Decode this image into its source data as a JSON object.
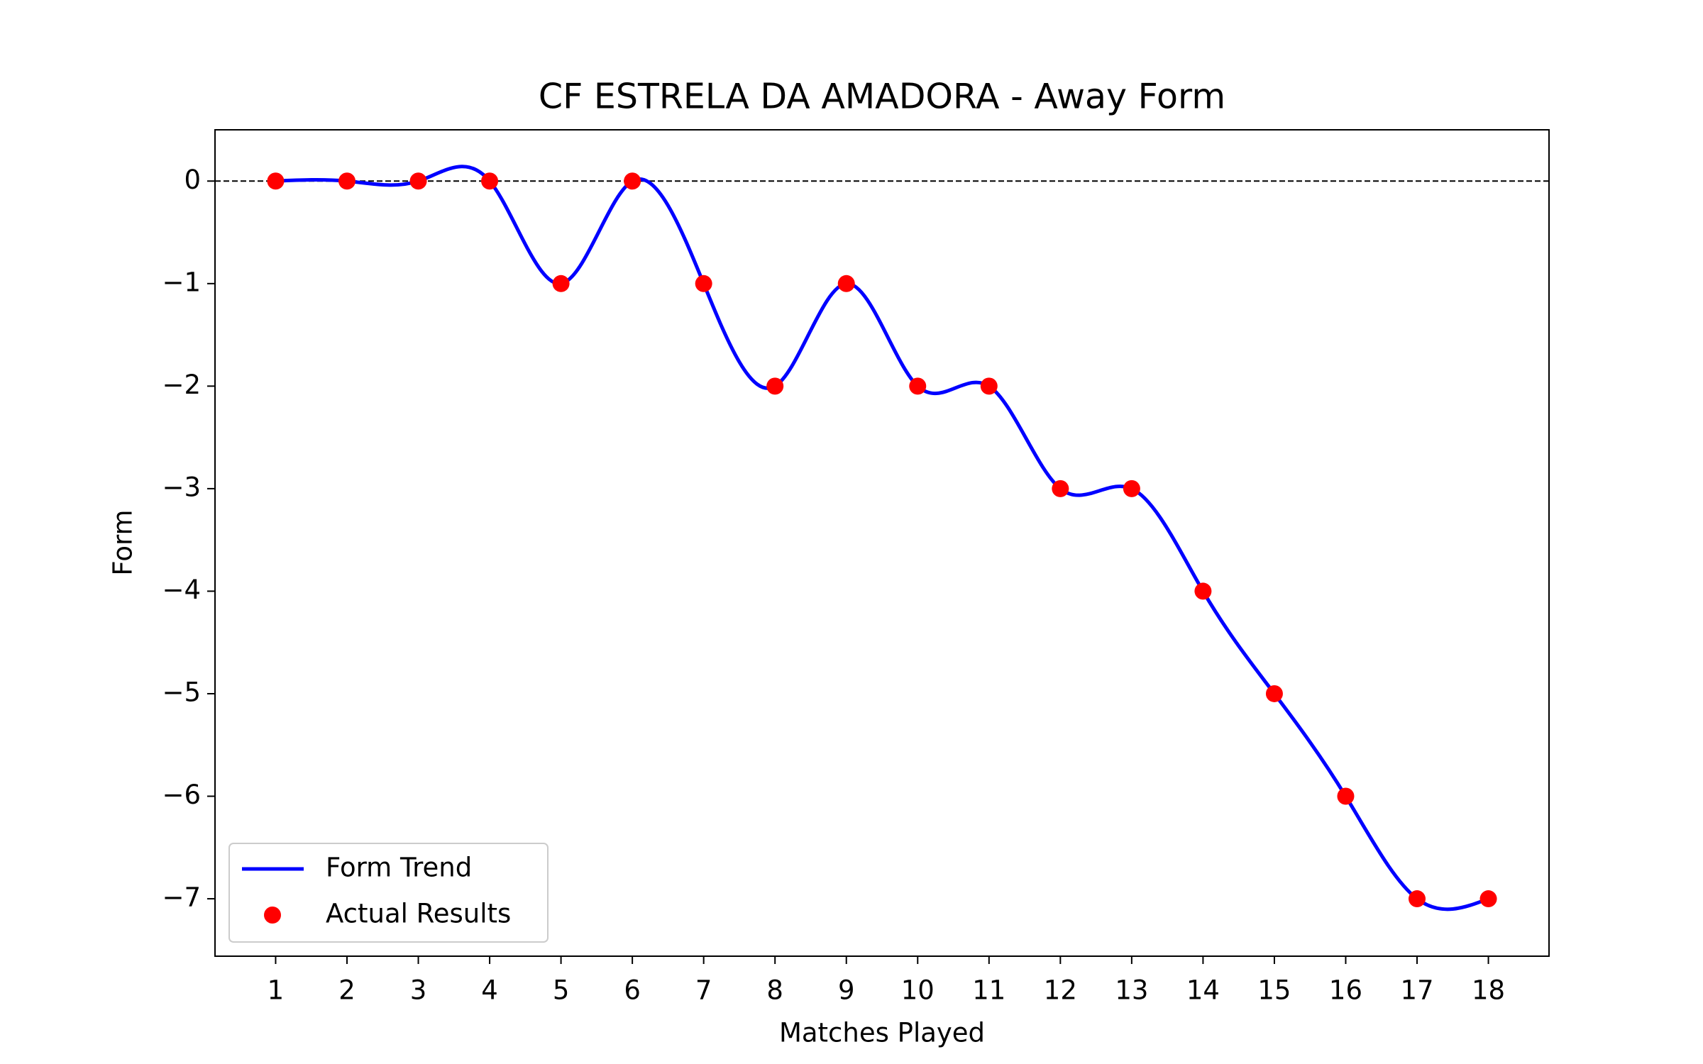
{
  "chart_data": {
    "type": "line",
    "title": "CF ESTRELA DA AMADORA - Away Form",
    "x_label": "Matches Played",
    "y_label": "Form",
    "x": [
      1,
      2,
      3,
      4,
      5,
      6,
      7,
      8,
      9,
      10,
      11,
      12,
      13,
      14,
      15,
      16,
      17,
      18
    ],
    "series": [
      {
        "name": "Form Trend",
        "type": "line",
        "smooth": true,
        "color": "#0000ff",
        "values": [
          0,
          0,
          0,
          0,
          -1,
          0,
          -1,
          -2,
          -1,
          -2,
          -2,
          -3,
          -3,
          -4,
          -5,
          -6,
          -7,
          -7
        ]
      },
      {
        "name": "Actual Results",
        "type": "scatter",
        "color": "#ff0000",
        "values": [
          0,
          0,
          0,
          0,
          -1,
          0,
          -1,
          -2,
          -1,
          -2,
          -2,
          -3,
          -3,
          -4,
          -5,
          -6,
          -7,
          -7
        ]
      }
    ],
    "hline": 0,
    "xlim": [
      0.15,
      18.85
    ],
    "ylim": [
      -7.56,
      0.5
    ],
    "xticks": [
      1,
      2,
      3,
      4,
      5,
      6,
      7,
      8,
      9,
      10,
      11,
      12,
      13,
      14,
      15,
      16,
      17,
      18
    ],
    "yticks": [
      {
        "value": -7,
        "label": "−7"
      },
      {
        "value": -6,
        "label": "−6"
      },
      {
        "value": -5,
        "label": "−5"
      },
      {
        "value": -4,
        "label": "−4"
      },
      {
        "value": -3,
        "label": "−3"
      },
      {
        "value": -2,
        "label": "−2"
      },
      {
        "value": -1,
        "label": "−1"
      },
      0
    ],
    "legend": "lower left"
  }
}
